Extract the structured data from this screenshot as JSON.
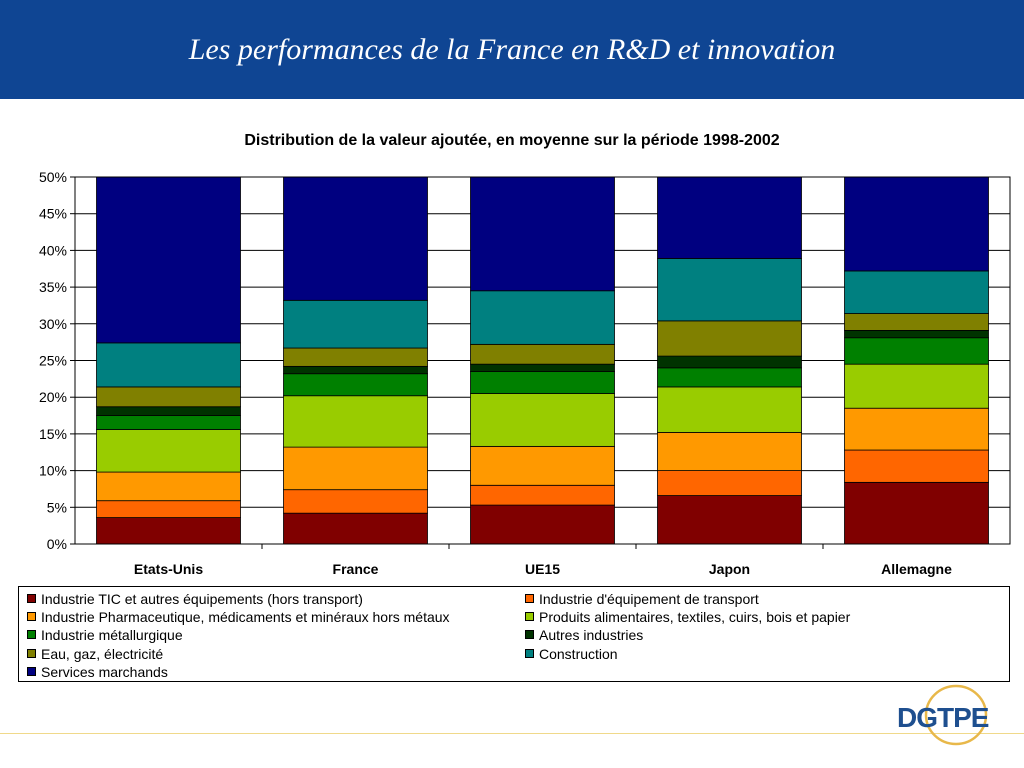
{
  "header": {
    "title": "Les performances de la France en R&D et innovation"
  },
  "chart_data": {
    "type": "bar",
    "stacked": true,
    "title": "Distribution de la valeur ajoutée, en moyenne sur la période 1998-2002",
    "xlabel": "",
    "ylabel": "",
    "ylim": [
      0,
      50
    ],
    "yticks": [
      "0%",
      "5%",
      "10%",
      "15%",
      "20%",
      "25%",
      "30%",
      "35%",
      "40%",
      "45%",
      "50%"
    ],
    "grid": true,
    "legend_position": "bottom",
    "categories": [
      "Etats-Unis",
      "France",
      "UE15",
      "Japon",
      "Allemagne"
    ],
    "series": [
      {
        "name": "Industrie TIC et autres équipements (hors transport)",
        "color": "#800000",
        "values": [
          3.6,
          4.2,
          5.3,
          6.6,
          8.4
        ]
      },
      {
        "name": "Industrie d'équipement de transport",
        "color": "#ff6600",
        "values": [
          2.3,
          3.2,
          2.7,
          3.4,
          4.4
        ]
      },
      {
        "name": "Industrie Pharmaceutique, médicaments et minéraux hors métaux",
        "color": "#ff9900",
        "values": [
          3.9,
          5.8,
          5.3,
          5.2,
          5.7
        ]
      },
      {
        "name": "Produits alimentaires, textiles, cuirs, bois et papier",
        "color": "#99cc00",
        "values": [
          5.8,
          7.0,
          7.2,
          6.2,
          6.0
        ]
      },
      {
        "name": "Industrie métallurgique",
        "color": "#008000",
        "values": [
          1.9,
          3.0,
          3.0,
          2.6,
          3.6
        ]
      },
      {
        "name": "Autres industries",
        "color": "#003300",
        "values": [
          1.2,
          1.0,
          1.0,
          1.6,
          1.0
        ]
      },
      {
        "name": "Eau, gaz, électricité",
        "color": "#808000",
        "values": [
          2.7,
          2.5,
          2.7,
          4.8,
          2.3
        ]
      },
      {
        "name": "Construction",
        "color": "#008080",
        "values": [
          6.0,
          6.5,
          7.3,
          8.5,
          5.8
        ]
      },
      {
        "name": "Services marchands",
        "color": "#000080",
        "values": [
          22.6,
          16.8,
          15.5,
          11.1,
          12.8
        ]
      }
    ]
  },
  "logo": {
    "text": "DGTPE"
  }
}
